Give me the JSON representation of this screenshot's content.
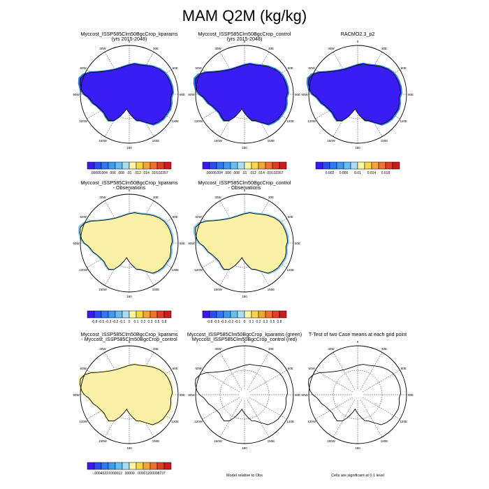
{
  "page": {
    "title": "MAM Q2M (kg/kg)"
  },
  "lon_labels": [
    "0",
    "30E",
    "60E",
    "90E",
    "120E",
    "150E",
    "180",
    "150W",
    "120W",
    "90W",
    "60W",
    "30W"
  ],
  "palettes": {
    "abs": [
      "#3a1af0",
      "#2a4cf0",
      "#2f78f4",
      "#3c9af2",
      "#66bef0",
      "#a8dcf0",
      "#fcf6a4",
      "#f8d448",
      "#f6a23a",
      "#f07030",
      "#e23c24",
      "#c81c20"
    ],
    "diff": [
      "#3a1af0",
      "#2a4cf0",
      "#2f78f4",
      "#3c9af2",
      "#66bef0",
      "#a8dcf0",
      "#fcf6a4",
      "#f8d448",
      "#f6a23a",
      "#f07030",
      "#e23c24",
      "#c81c20"
    ]
  },
  "panels": [
    {
      "id": "p1",
      "title1": "Myccost_ISSP585Clm50BgcCrop_kparams",
      "title2": "(yrs 2015-2048)",
      "fill": "#3a1cf4",
      "edge": "#2f78f4",
      "colorbar": {
        "palette": "abs",
        "labels": [
          ".00005",
          ".004",
          ".006",
          ".008",
          ".01",
          ".012",
          ".014",
          ".016",
          ".02357"
        ]
      }
    },
    {
      "id": "p2",
      "title1": "Myccost_ISSP585Clm50BgcCrop_control",
      "title2": "(yrs 2015-2048)",
      "fill": "#3a1cf4",
      "edge": "#2f78f4",
      "colorbar": {
        "palette": "abs",
        "labels": [
          ".00005",
          ".004",
          ".006",
          ".008",
          ".01",
          ".012",
          ".014",
          ".016",
          ".02357"
        ]
      }
    },
    {
      "id": "p3",
      "title1": "RACMO2.3_p2",
      "title2": "",
      "fill": "#3a1cf4",
      "edge": "#2f78f4",
      "colorbar": {
        "palette": "abs",
        "labels": [
          "0.002",
          "0.006",
          "0.01",
          "0.014",
          "0.018"
        ]
      }
    },
    {
      "id": "p4",
      "title1": "Myccost_ISSP585Clm50BgcCrop_kparams",
      "title2": "- Observations",
      "fill": "#fbf1a6",
      "edge": "#7fc6ef",
      "colorbar": {
        "palette": "diff",
        "labels": [
          "-0.8",
          "-0.5",
          "-0.3",
          "-0.2",
          "-0.1",
          "0",
          "0.1",
          "0.2",
          "0.3",
          "0.5",
          "0.8"
        ]
      }
    },
    {
      "id": "p5",
      "title1": "Myccost_ISSP585Clm50BgcCrop_control",
      "title2": "- Observations",
      "fill": "#fbf1a6",
      "edge": "#7fc6ef",
      "colorbar": {
        "palette": "diff",
        "labels": [
          "-0.8",
          "-0.5",
          "-0.3",
          "-0.2",
          "-0.1",
          "0",
          "0.1",
          "0.2",
          "0.3",
          "0.5",
          "0.8"
        ]
      }
    },
    {
      "id": "p6",
      "title1": "Myccost_ISSP585Clm50BgcCrop_kparams",
      "title2": "- Myccost_ISSP585Clm50BgcCrop_control",
      "fill": "#fbf1a6",
      "edge": "#fbf1a6",
      "colorbar": {
        "palette": "diff",
        "labels": [
          "-.00045227",
          "-.000012",
          ".00000",
          ".000012",
          ".00008737"
        ]
      }
    },
    {
      "id": "p7",
      "title1": "Myccost_ISSP585Clm50BgcCrop_kparams (green)",
      "title2": "Myccost_ISSP585Clm50BgcCrop_control (red)",
      "fill": "none",
      "edge": "none",
      "caption": "Model relative to Obs"
    },
    {
      "id": "p8",
      "title1": "T-Test of two Case means at each grid point",
      "title2": "",
      "fill": "none",
      "edge": "none",
      "caption": "Cells are significant at 0.1 level"
    }
  ],
  "chart_data": [
    {
      "type": "heatmap",
      "title": "Myccost_ISSP585Clm50BgcCrop_kparams (yrs 2015-2048)",
      "field": "Q2M",
      "units": "kg/kg",
      "season": "MAM",
      "contour_levels": [
        5e-05,
        0.004,
        0.006,
        0.008,
        0.01,
        0.012,
        0.014,
        0.016,
        0.02357
      ],
      "dominant_bin": "< 0.004"
    },
    {
      "type": "heatmap",
      "title": "Myccost_ISSP585Clm50BgcCrop_control (yrs 2015-2048)",
      "field": "Q2M",
      "units": "kg/kg",
      "season": "MAM",
      "contour_levels": [
        5e-05,
        0.004,
        0.006,
        0.008,
        0.01,
        0.012,
        0.014,
        0.016,
        0.02357
      ],
      "dominant_bin": "< 0.004"
    },
    {
      "type": "heatmap",
      "title": "RACMO2.3_p2",
      "field": "Q2M",
      "units": "kg/kg",
      "season": "MAM",
      "contour_levels": [
        0.002,
        0.006,
        0.01,
        0.014,
        0.018
      ],
      "dominant_bin": "< 0.002"
    },
    {
      "type": "heatmap",
      "title": "Myccost_ISSP585Clm50BgcCrop_kparams - Observations",
      "field": "Q2M",
      "contour_levels": [
        -0.8,
        -0.5,
        -0.3,
        -0.2,
        -0.1,
        0,
        0.1,
        0.2,
        0.3,
        0.5,
        0.8
      ],
      "dominant_bin": "0 to 0.1"
    },
    {
      "type": "heatmap",
      "title": "Myccost_ISSP585Clm50BgcCrop_control - Observations",
      "field": "Q2M",
      "contour_levels": [
        -0.8,
        -0.5,
        -0.3,
        -0.2,
        -0.1,
        0,
        0.1,
        0.2,
        0.3,
        0.5,
        0.8
      ],
      "dominant_bin": "0 to 0.1"
    },
    {
      "type": "heatmap",
      "title": "Myccost_ISSP585Clm50BgcCrop_kparams - Myccost_ISSP585Clm50BgcCrop_control",
      "field": "Q2M",
      "contour_levels": [
        -0.00045227,
        -1.2e-05,
        0.0,
        1.2e-05,
        8.737e-05
      ],
      "dominant_bin": "0 to .000012"
    },
    {
      "type": "heatmap",
      "title": "Model relative to Obs",
      "field": "Q2M",
      "note": "no colored cells"
    },
    {
      "type": "heatmap",
      "title": "T-Test of two Case means at each grid point",
      "field": "Q2M",
      "note": "Cells are significant at 0.1 level; no significant cells shown"
    }
  ]
}
